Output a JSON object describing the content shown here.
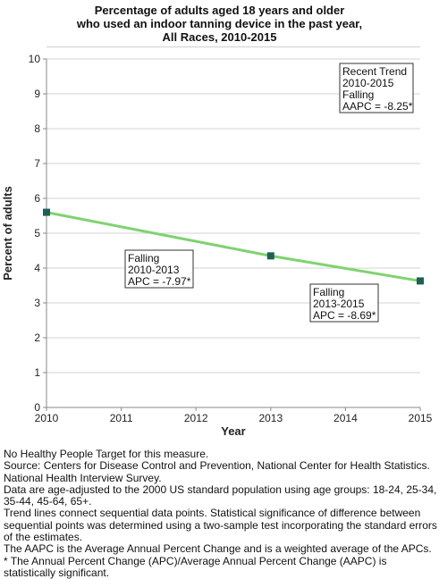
{
  "chart_data": {
    "type": "line",
    "title_lines": [
      "Percentage of adults aged 18 years and older",
      "who used an indoor tanning device in the past year,",
      "All Races,  2010-2015"
    ],
    "xlabel": "Year",
    "ylabel": "Percent of adults",
    "xlim": [
      2010,
      2015
    ],
    "ylim": [
      0,
      10
    ],
    "x_ticks": [
      2010,
      2011,
      2012,
      2013,
      2014,
      2015
    ],
    "y_ticks": [
      0,
      1,
      2,
      3,
      4,
      5,
      6,
      7,
      8,
      9,
      10
    ],
    "grid": true,
    "points": [
      {
        "x": 2010,
        "y": 5.6
      },
      {
        "x": 2013,
        "y": 4.35
      },
      {
        "x": 2015,
        "y": 3.63
      }
    ],
    "line_color": "#7fd36f",
    "marker_color": "#1e5f58",
    "annotations": [
      {
        "name": "recent-trend",
        "lines": [
          "Recent Trend",
          "2010-2015",
          "Falling",
          "AAPC = -8.25*"
        ]
      },
      {
        "name": "segment-2010-2013",
        "lines": [
          "Falling",
          "2010-2013",
          "APC = -7.97*"
        ]
      },
      {
        "name": "segment-2013-2015",
        "lines": [
          "Falling",
          "2013-2015",
          "APC = -8.69*"
        ]
      }
    ]
  },
  "notes": [
    "No Healthy People Target for this measure.",
    "Source: Centers for Disease Control and Prevention, National Center for Health Statistics.",
    "National Health Interview Survey.",
    "Data are age-adjusted to the 2000 US standard population using age groups: 18-24, 25-34,",
    "35-44, 45-64, 65+.",
    "Trend lines connect sequential data points. Statistical significance of difference between",
    "sequential points was determined using a two-sample test incorporating the standard errors",
    "of the estimates.",
    "The AAPC is the Average Annual Percent Change and is a weighted average of the APCs.",
    "* The Annual Percent Change (APC)/Average Annual Percent Change (AAPC) is",
    "statistically significant."
  ]
}
